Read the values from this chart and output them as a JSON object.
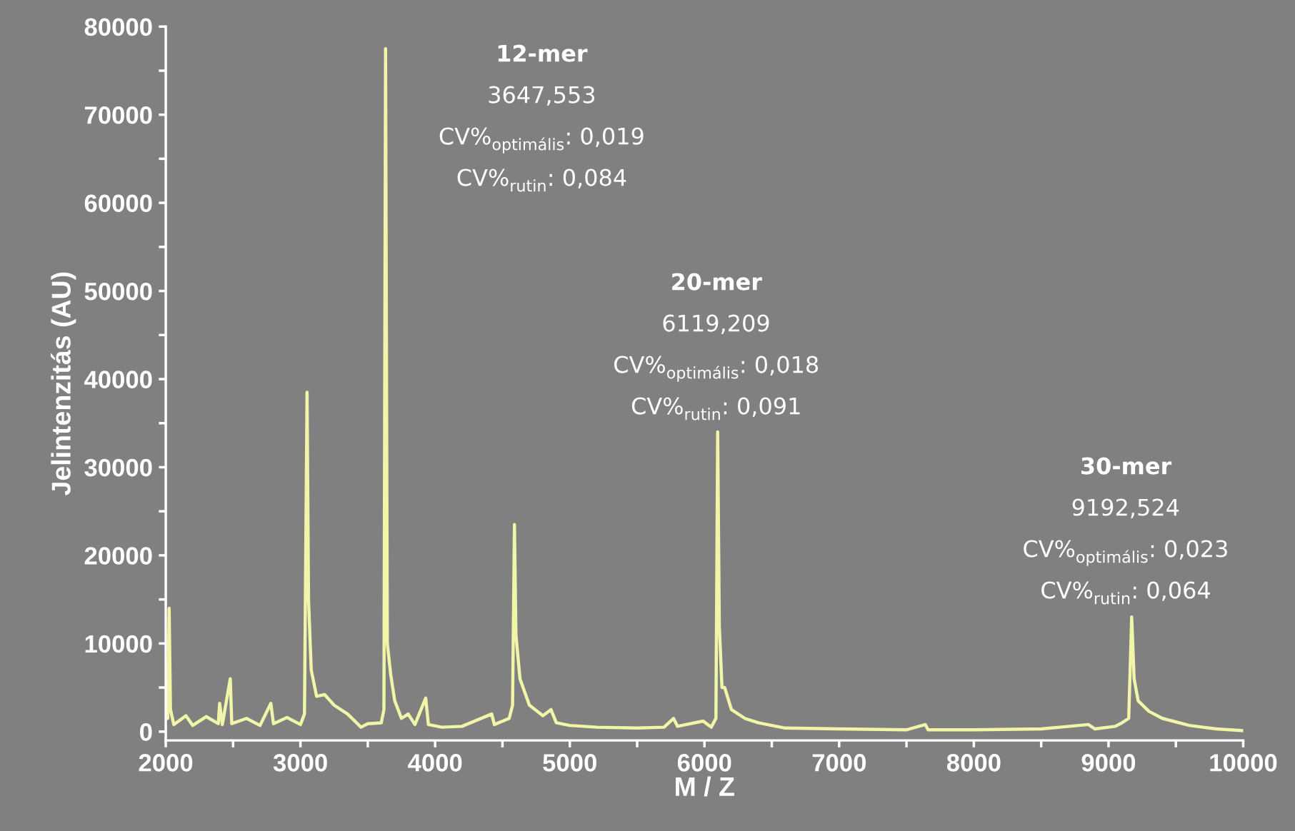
{
  "chart_data": {
    "type": "line",
    "xlabel": "M / Z",
    "ylabel": "Jelintenzitás (AU)",
    "xlim": [
      2000,
      10000
    ],
    "ylim": [
      -1000,
      80000
    ],
    "xticks": [
      2000,
      {
        "value": 2500,
        "label": null
      },
      3000,
      {
        "value": 3500,
        "label": null
      },
      4000,
      {
        "value": 4500,
        "label": null
      },
      5000,
      {
        "value": 5500,
        "label": null
      },
      6000,
      {
        "value": 6500,
        "label": null
      },
      7000,
      {
        "value": 7500,
        "label": null
      },
      8000,
      {
        "value": 8500,
        "label": null
      },
      9000,
      {
        "value": 9500,
        "label": null
      },
      10000
    ],
    "yticks": [
      0,
      {
        "value": 5000,
        "label": null
      },
      10000,
      {
        "value": 15000,
        "label": null
      },
      20000,
      {
        "value": 25000,
        "label": null
      },
      30000,
      {
        "value": 35000,
        "label": null
      },
      40000,
      {
        "value": 45000,
        "label": null
      },
      50000,
      {
        "value": 55000,
        "label": null
      },
      60000,
      {
        "value": 65000,
        "label": null
      },
      70000,
      {
        "value": 75000,
        "label": null
      },
      80000
    ],
    "grid": false,
    "legend": false,
    "annotations": [
      "12-mer",
      "3647,553",
      "CV%$_{optimális}$: 0,019",
      "CV%$_{rutin}$: 0,084",
      "20-mer",
      "6119,209",
      "CV%$_{optimális}$: 0,018",
      "CV%$_{rutin}$: 0,091",
      "30-mer",
      "9192,524",
      "CV%$_{optimális}$: 0,023",
      "CV%$_{rutin}$: 0,064"
    ],
    "series": [
      {
        "color": "#f0f5a8",
        "x": [
          2000,
          2015,
          2025,
          2035,
          2060,
          2150,
          2200,
          2300,
          2390,
          2400,
          2420,
          2479,
          2490,
          2600,
          2700,
          2780,
          2800,
          2900,
          3000,
          3030,
          3049,
          3060,
          3080,
          3120,
          3180,
          3250,
          3350,
          3450,
          3500,
          3600,
          3620,
          3632,
          3645,
          3670,
          3700,
          3750,
          3800,
          3850,
          3930,
          3950,
          4050,
          4200,
          4420,
          4440,
          4550,
          4575,
          4589,
          4600,
          4630,
          4700,
          4800,
          4860,
          4900,
          5000,
          5200,
          5500,
          5700,
          5770,
          5800,
          5990,
          6050,
          6085,
          6098,
          6110,
          6130,
          6150,
          6200,
          6300,
          6400,
          6600,
          7000,
          7500,
          7640,
          7660,
          8000,
          8500,
          8850,
          8900,
          9050,
          9100,
          9150,
          9172,
          9190,
          9220,
          9300,
          9400,
          9600,
          9800,
          10000
        ],
        "values": [
          2500,
          1500,
          14000,
          2500,
          800,
          1800,
          700,
          1700,
          900,
          3200,
          800,
          6000,
          900,
          1500,
          700,
          3200,
          900,
          1600,
          800,
          2000,
          38500,
          15000,
          7000,
          4000,
          4200,
          3000,
          2000,
          500,
          900,
          1000,
          2500,
          77500,
          10000,
          6500,
          3500,
          1500,
          2000,
          800,
          3800,
          800,
          500,
          600,
          2000,
          800,
          1500,
          3000,
          23500,
          11000,
          6000,
          3000,
          1800,
          2500,
          1000,
          700,
          500,
          400,
          500,
          1500,
          600,
          1200,
          500,
          1500,
          34000,
          12000,
          5000,
          5000,
          2500,
          1500,
          1000,
          400,
          300,
          200,
          800,
          200,
          200,
          300,
          800,
          300,
          600,
          1000,
          1500,
          13000,
          6000,
          3500,
          2300,
          1500,
          700,
          300,
          100
        ]
      }
    ]
  }
}
